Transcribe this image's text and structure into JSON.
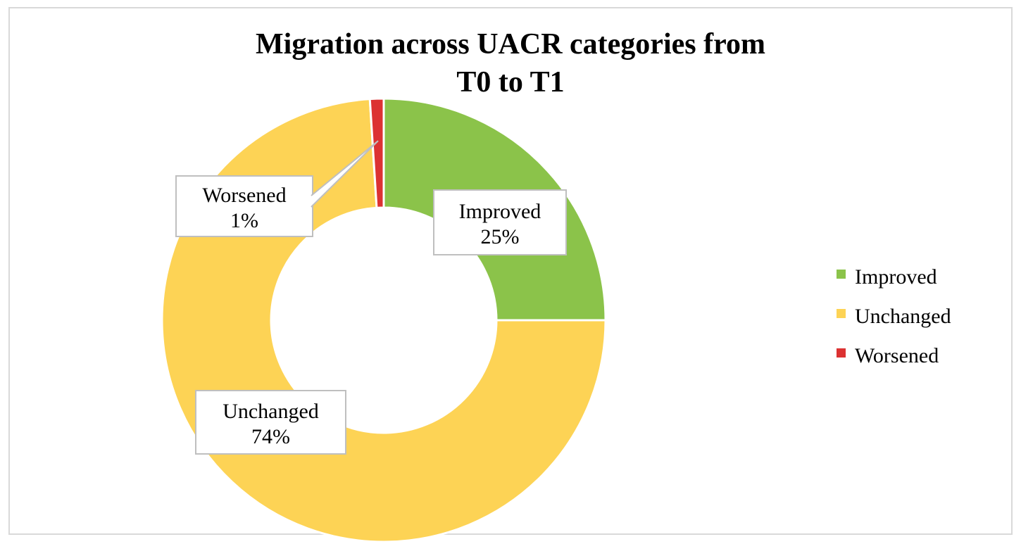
{
  "chart_data": {
    "type": "pie",
    "variant": "donut",
    "title": "Migration across UACR categories from\nT0 to T1",
    "categories": [
      "Improved",
      "Unchanged",
      "Worsened"
    ],
    "values": [
      25,
      74,
      1
    ],
    "colors": [
      "#8bc34a",
      "#fdd355",
      "#dc3232"
    ],
    "data_labels": [
      {
        "name": "Improved",
        "value": "25%"
      },
      {
        "name": "Unchanged",
        "value": "74%"
      },
      {
        "name": "Worsened",
        "value": "1%"
      }
    ],
    "legend": {
      "position": "right",
      "entries": [
        "Improved",
        "Unchanged",
        "Worsened"
      ]
    }
  }
}
